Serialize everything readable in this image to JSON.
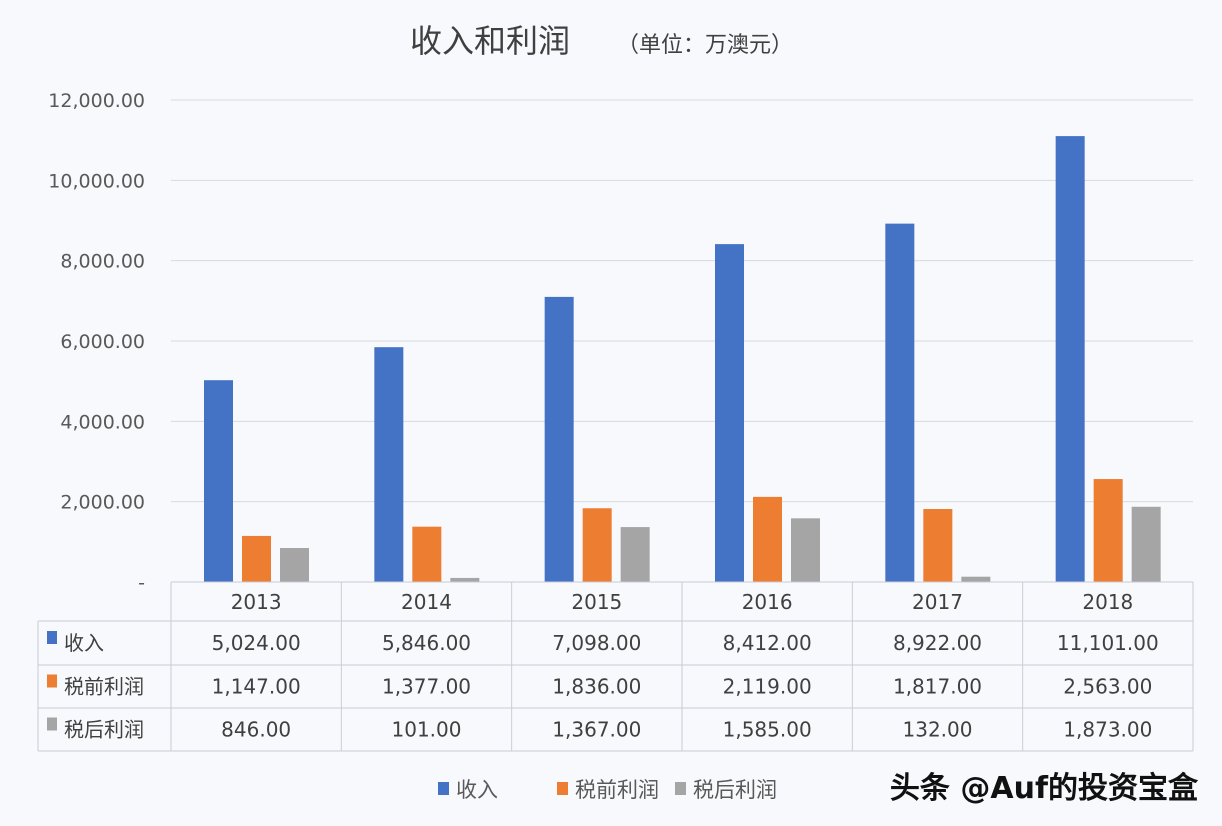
{
  "chart_data": {
    "type": "bar",
    "title": "收入和利润",
    "subtitle": "（单位：万澳元）",
    "categories": [
      "2013",
      "2014",
      "2015",
      "2016",
      "2017",
      "2018"
    ],
    "series": [
      {
        "name": "收入",
        "color": "#4472c4",
        "values": [
          5024,
          5846,
          7098,
          8412,
          8922,
          11101
        ]
      },
      {
        "name": "税前利润",
        "color": "#ed7d31",
        "values": [
          1147,
          1377,
          1836,
          2119,
          1817,
          2563
        ]
      },
      {
        "name": "税后利润",
        "color": "#a5a5a5",
        "values": [
          846,
          101,
          1367,
          1585,
          132,
          1873
        ]
      }
    ],
    "ylim": [
      0,
      12000
    ],
    "yticks": [
      0,
      2000,
      4000,
      6000,
      8000,
      10000,
      12000
    ],
    "ytick_labels": [
      "-",
      "2,000.00",
      "4,000.00",
      "6,000.00",
      "8,000.00",
      "10,000.00",
      "12,000.00"
    ],
    "table_values": [
      [
        "5,024.00",
        "5,846.00",
        "7,098.00",
        "8,412.00",
        "8,922.00",
        "11,101.00"
      ],
      [
        "1,147.00",
        "1,377.00",
        "1,836.00",
        "2,119.00",
        "1,817.00",
        "2,563.00"
      ],
      [
        "846.00",
        "101.00",
        "1,367.00",
        "1,585.00",
        "132.00",
        "1,873.00"
      ]
    ],
    "grid": true,
    "legend_position": "bottom"
  },
  "watermark": "头条 @Auf的投资宝盒"
}
